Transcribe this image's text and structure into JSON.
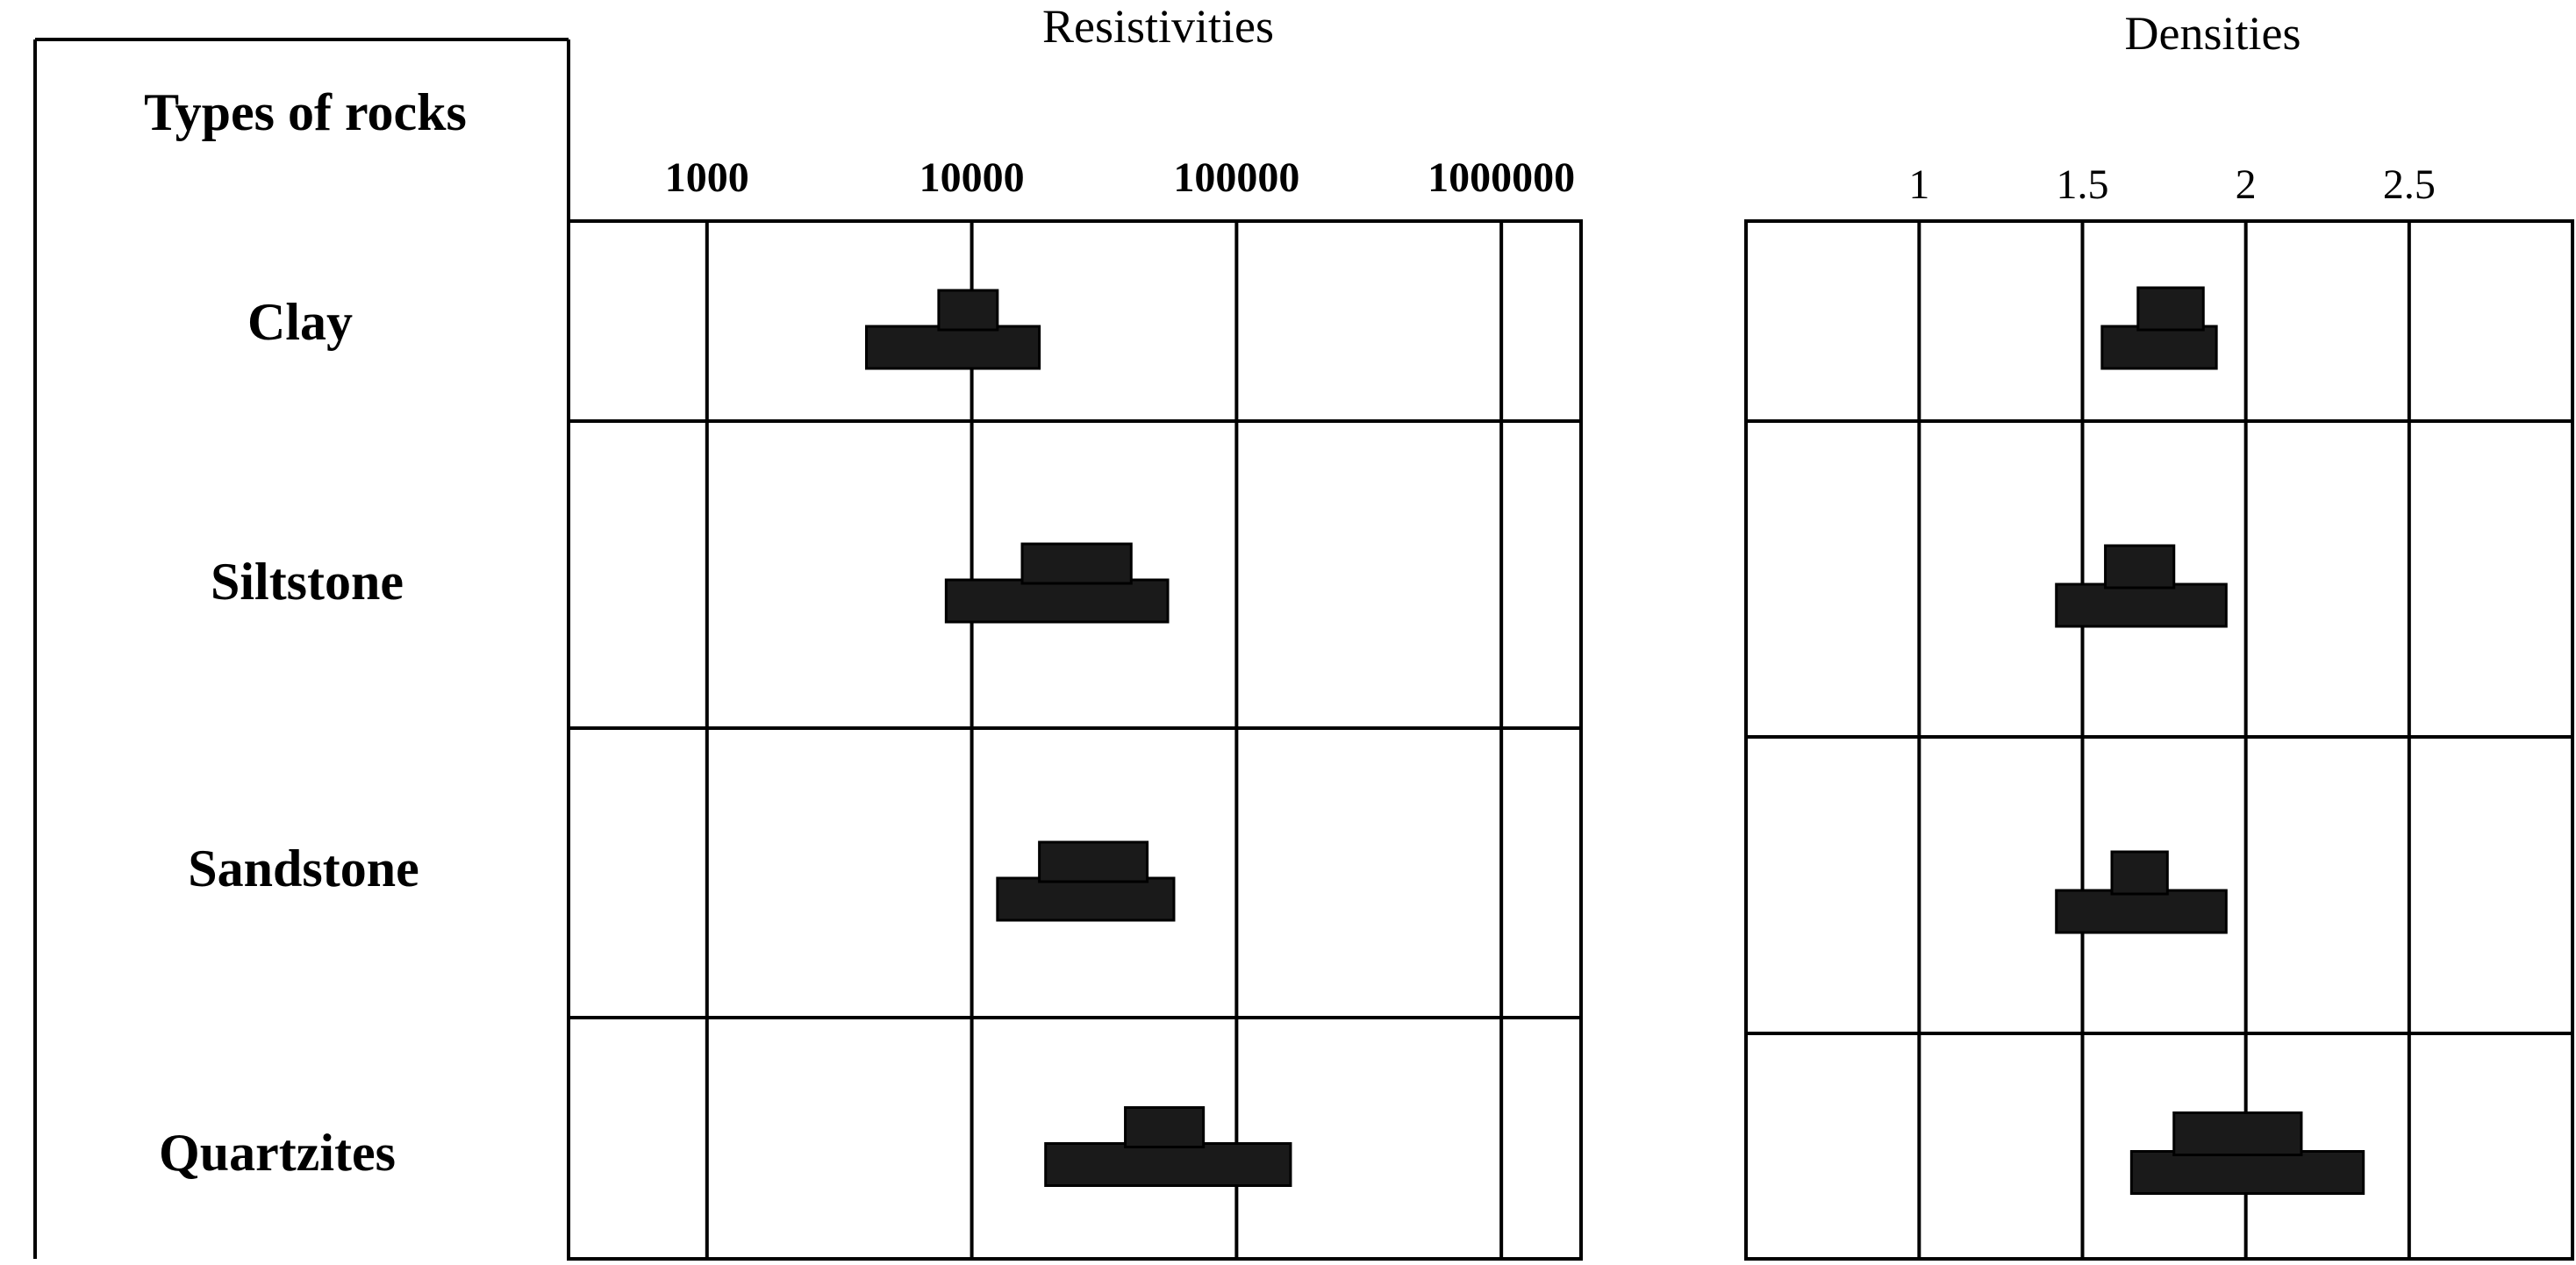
{
  "table": {
    "header": "Types of rocks",
    "rows": [
      "Clay",
      "Siltstone",
      "Sandstone",
      "Quartzites"
    ]
  },
  "chart_data": [
    {
      "type": "bar",
      "title": "Resistivities",
      "scale": "log",
      "tick_labels": [
        "1000",
        "10000",
        "100000",
        "1000000"
      ],
      "ticks": [
        1000,
        10000,
        100000,
        1000000
      ],
      "xlim": [
        300,
        2000000
      ],
      "categories": [
        "Clay",
        "Siltstone",
        "Sandstone",
        "Quartzites"
      ],
      "ranges": [
        {
          "name": "Clay",
          "wide": [
            4000,
            18000
          ],
          "narrow": [
            7500,
            12500
          ]
        },
        {
          "name": "Siltstone",
          "wide": [
            8000,
            55000
          ],
          "narrow": [
            15500,
            40000
          ]
        },
        {
          "name": "Sandstone",
          "wide": [
            12500,
            58000
          ],
          "narrow": [
            18000,
            46000
          ]
        },
        {
          "name": "Quartzites",
          "wide": [
            19000,
            160000
          ],
          "narrow": [
            38000,
            75000
          ]
        }
      ]
    },
    {
      "type": "bar",
      "title": "Densities",
      "scale": "linear",
      "tick_labels": [
        "1",
        "1.5",
        "2",
        "2.5"
      ],
      "ticks": [
        1,
        1.5,
        2,
        2.5
      ],
      "xlim": [
        0.47,
        3.0
      ],
      "categories": [
        "Clay",
        "Siltstone",
        "Sandstone",
        "Quartzites"
      ],
      "ranges": [
        {
          "name": "Clay",
          "wide": [
            1.56,
            1.91
          ],
          "narrow": [
            1.67,
            1.87
          ]
        },
        {
          "name": "Siltstone",
          "wide": [
            1.42,
            1.94
          ],
          "narrow": [
            1.57,
            1.78
          ]
        },
        {
          "name": "Sandstone",
          "wide": [
            1.42,
            1.94
          ],
          "narrow": [
            1.59,
            1.76
          ]
        },
        {
          "name": "Quartzites",
          "wide": [
            1.65,
            2.36
          ],
          "narrow": [
            1.78,
            2.17
          ]
        }
      ]
    }
  ]
}
